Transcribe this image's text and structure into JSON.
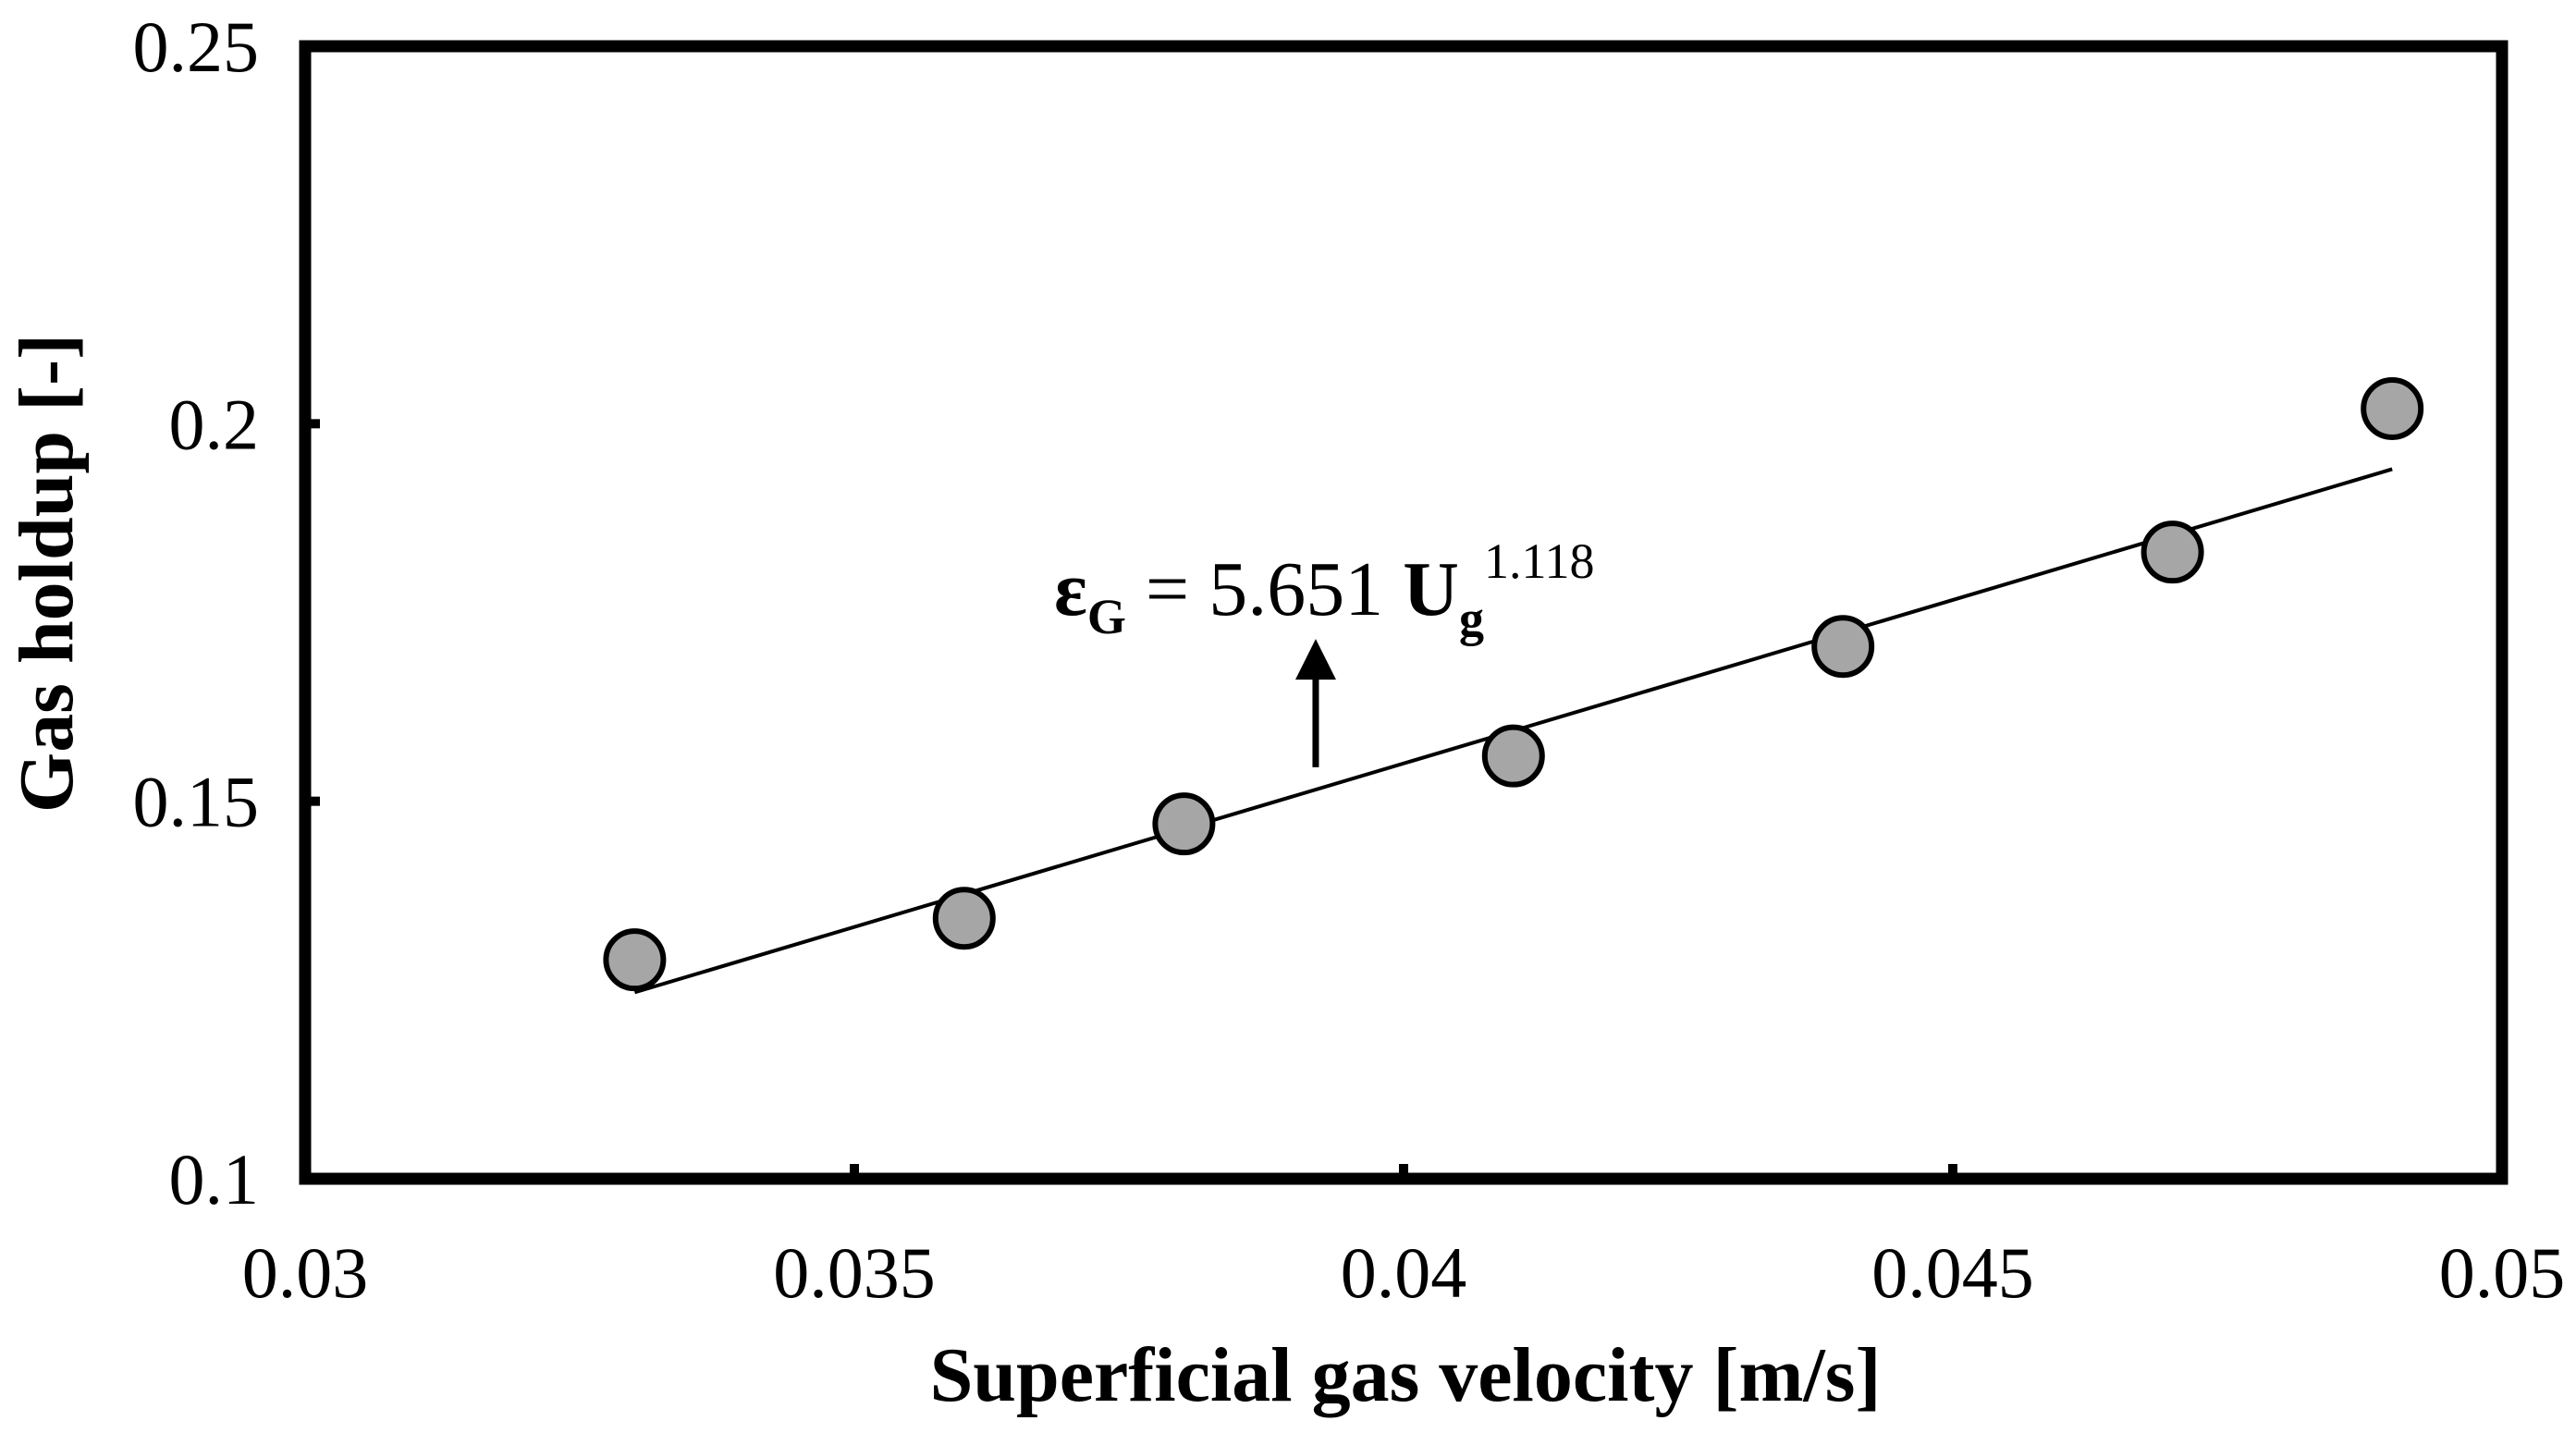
{
  "chart_data": {
    "type": "scatter",
    "title": "",
    "xlabel": "Superficial gas velocity [m/s]",
    "ylabel": "Gas holdup [-]",
    "xlim": [
      0.03,
      0.05
    ],
    "ylim": [
      0.1,
      0.25
    ],
    "xticks": [
      "0.03",
      "0.035",
      "0.04",
      "0.045",
      "0.05"
    ],
    "yticks": [
      "0.1",
      "0.15",
      "0.2",
      "0.25"
    ],
    "grid": false,
    "series": [
      {
        "name": "Gas holdup",
        "marker": "circle",
        "color": "#a6a6a6",
        "edgecolor": "#000000",
        "x": [
          0.033,
          0.036,
          0.038,
          0.041,
          0.044,
          0.047,
          0.049
        ],
        "y": [
          0.129,
          0.1345,
          0.147,
          0.156,
          0.1705,
          0.183,
          0.202
        ]
      }
    ],
    "fit": {
      "name": "power-law fit",
      "coefficient": 5.651,
      "exponent": 1.118,
      "x_range": [
        0.033,
        0.049
      ],
      "color": "#000000"
    },
    "annotation": {
      "eq_epsilon": "ε",
      "eq_eps_sub": "G",
      "eq_equals": " = 5.651 ",
      "eq_u": "U",
      "eq_u_sub": "g",
      "eq_exp": "1.118",
      "arrow_x": 0.0392,
      "arrow_from_y": 0.1545,
      "arrow_to_y": 0.1715
    }
  }
}
